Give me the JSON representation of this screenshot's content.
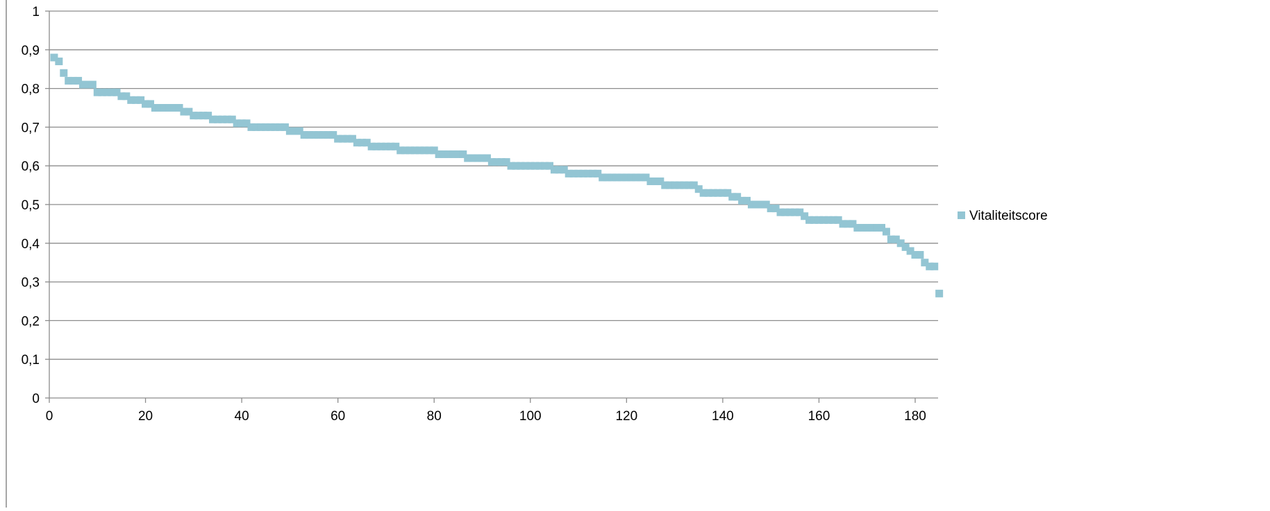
{
  "chart_data": {
    "type": "scatter",
    "xlim": [
      0,
      185
    ],
    "ylim": [
      0,
      1
    ],
    "xticks": [
      0,
      20,
      40,
      60,
      80,
      100,
      120,
      140,
      160,
      180
    ],
    "yticks": [
      0,
      0.1,
      0.2,
      0.3,
      0.4,
      0.5,
      0.6,
      0.7,
      0.8,
      0.9,
      1
    ],
    "x_tick_labels": [
      "0",
      "20",
      "40",
      "60",
      "80",
      "100",
      "120",
      "140",
      "160",
      "180"
    ],
    "y_tick_labels": [
      "0",
      "0,1",
      "0,2",
      "0,3",
      "0,4",
      "0,5",
      "0,6",
      "0,7",
      "0,8",
      "0,9",
      "1"
    ],
    "grid": "horizontal",
    "legend_position": "right",
    "series": [
      {
        "name": "Vitaliteitscore",
        "color": "#93c5d3",
        "marker": "square",
        "points": [
          [
            1,
            0.88
          ],
          [
            2,
            0.87
          ],
          [
            3,
            0.84
          ],
          [
            4,
            0.82
          ],
          [
            5,
            0.82
          ],
          [
            6,
            0.82
          ],
          [
            7,
            0.81
          ],
          [
            8,
            0.81
          ],
          [
            9,
            0.81
          ],
          [
            10,
            0.79
          ],
          [
            11,
            0.79
          ],
          [
            12,
            0.79
          ],
          [
            13,
            0.79
          ],
          [
            14,
            0.79
          ],
          [
            15,
            0.78
          ],
          [
            16,
            0.78
          ],
          [
            17,
            0.77
          ],
          [
            18,
            0.77
          ],
          [
            19,
            0.77
          ],
          [
            20,
            0.76
          ],
          [
            21,
            0.76
          ],
          [
            22,
            0.75
          ],
          [
            23,
            0.75
          ],
          [
            24,
            0.75
          ],
          [
            25,
            0.75
          ],
          [
            26,
            0.75
          ],
          [
            27,
            0.75
          ],
          [
            28,
            0.74
          ],
          [
            29,
            0.74
          ],
          [
            30,
            0.73
          ],
          [
            31,
            0.73
          ],
          [
            32,
            0.73
          ],
          [
            33,
            0.73
          ],
          [
            34,
            0.72
          ],
          [
            35,
            0.72
          ],
          [
            36,
            0.72
          ],
          [
            37,
            0.72
          ],
          [
            38,
            0.72
          ],
          [
            39,
            0.71
          ],
          [
            40,
            0.71
          ],
          [
            41,
            0.71
          ],
          [
            42,
            0.7
          ],
          [
            43,
            0.7
          ],
          [
            44,
            0.7
          ],
          [
            45,
            0.7
          ],
          [
            46,
            0.7
          ],
          [
            47,
            0.7
          ],
          [
            48,
            0.7
          ],
          [
            49,
            0.7
          ],
          [
            50,
            0.69
          ],
          [
            51,
            0.69
          ],
          [
            52,
            0.69
          ],
          [
            53,
            0.68
          ],
          [
            54,
            0.68
          ],
          [
            55,
            0.68
          ],
          [
            56,
            0.68
          ],
          [
            57,
            0.68
          ],
          [
            58,
            0.68
          ],
          [
            59,
            0.68
          ],
          [
            60,
            0.67
          ],
          [
            61,
            0.67
          ],
          [
            62,
            0.67
          ],
          [
            63,
            0.67
          ],
          [
            64,
            0.66
          ],
          [
            65,
            0.66
          ],
          [
            66,
            0.66
          ],
          [
            67,
            0.65
          ],
          [
            68,
            0.65
          ],
          [
            69,
            0.65
          ],
          [
            70,
            0.65
          ],
          [
            71,
            0.65
          ],
          [
            72,
            0.65
          ],
          [
            73,
            0.64
          ],
          [
            74,
            0.64
          ],
          [
            75,
            0.64
          ],
          [
            76,
            0.64
          ],
          [
            77,
            0.64
          ],
          [
            78,
            0.64
          ],
          [
            79,
            0.64
          ],
          [
            80,
            0.64
          ],
          [
            81,
            0.63
          ],
          [
            82,
            0.63
          ],
          [
            83,
            0.63
          ],
          [
            84,
            0.63
          ],
          [
            85,
            0.63
          ],
          [
            86,
            0.63
          ],
          [
            87,
            0.62
          ],
          [
            88,
            0.62
          ],
          [
            89,
            0.62
          ],
          [
            90,
            0.62
          ],
          [
            91,
            0.62
          ],
          [
            92,
            0.61
          ],
          [
            93,
            0.61
          ],
          [
            94,
            0.61
          ],
          [
            95,
            0.61
          ],
          [
            96,
            0.6
          ],
          [
            97,
            0.6
          ],
          [
            98,
            0.6
          ],
          [
            99,
            0.6
          ],
          [
            100,
            0.6
          ],
          [
            101,
            0.6
          ],
          [
            102,
            0.6
          ],
          [
            103,
            0.6
          ],
          [
            104,
            0.6
          ],
          [
            105,
            0.59
          ],
          [
            106,
            0.59
          ],
          [
            107,
            0.59
          ],
          [
            108,
            0.58
          ],
          [
            109,
            0.58
          ],
          [
            110,
            0.58
          ],
          [
            111,
            0.58
          ],
          [
            112,
            0.58
          ],
          [
            113,
            0.58
          ],
          [
            114,
            0.58
          ],
          [
            115,
            0.57
          ],
          [
            116,
            0.57
          ],
          [
            117,
            0.57
          ],
          [
            118,
            0.57
          ],
          [
            119,
            0.57
          ],
          [
            120,
            0.57
          ],
          [
            121,
            0.57
          ],
          [
            122,
            0.57
          ],
          [
            123,
            0.57
          ],
          [
            124,
            0.57
          ],
          [
            125,
            0.56
          ],
          [
            126,
            0.56
          ],
          [
            127,
            0.56
          ],
          [
            128,
            0.55
          ],
          [
            129,
            0.55
          ],
          [
            130,
            0.55
          ],
          [
            131,
            0.55
          ],
          [
            132,
            0.55
          ],
          [
            133,
            0.55
          ],
          [
            134,
            0.55
          ],
          [
            135,
            0.54
          ],
          [
            136,
            0.53
          ],
          [
            137,
            0.53
          ],
          [
            138,
            0.53
          ],
          [
            139,
            0.53
          ],
          [
            140,
            0.53
          ],
          [
            141,
            0.53
          ],
          [
            142,
            0.52
          ],
          [
            143,
            0.52
          ],
          [
            144,
            0.51
          ],
          [
            145,
            0.51
          ],
          [
            146,
            0.5
          ],
          [
            147,
            0.5
          ],
          [
            148,
            0.5
          ],
          [
            149,
            0.5
          ],
          [
            150,
            0.49
          ],
          [
            151,
            0.49
          ],
          [
            152,
            0.48
          ],
          [
            153,
            0.48
          ],
          [
            154,
            0.48
          ],
          [
            155,
            0.48
          ],
          [
            156,
            0.48
          ],
          [
            157,
            0.47
          ],
          [
            158,
            0.46
          ],
          [
            159,
            0.46
          ],
          [
            160,
            0.46
          ],
          [
            161,
            0.46
          ],
          [
            162,
            0.46
          ],
          [
            163,
            0.46
          ],
          [
            164,
            0.46
          ],
          [
            165,
            0.45
          ],
          [
            166,
            0.45
          ],
          [
            167,
            0.45
          ],
          [
            168,
            0.44
          ],
          [
            169,
            0.44
          ],
          [
            170,
            0.44
          ],
          [
            171,
            0.44
          ],
          [
            172,
            0.44
          ],
          [
            173,
            0.44
          ],
          [
            174,
            0.43
          ],
          [
            175,
            0.41
          ],
          [
            176,
            0.41
          ],
          [
            177,
            0.4
          ],
          [
            178,
            0.39
          ],
          [
            179,
            0.38
          ],
          [
            180,
            0.37
          ],
          [
            181,
            0.37
          ],
          [
            182,
            0.35
          ],
          [
            183,
            0.34
          ],
          [
            184,
            0.34
          ],
          [
            185,
            0.27
          ]
        ]
      }
    ]
  }
}
